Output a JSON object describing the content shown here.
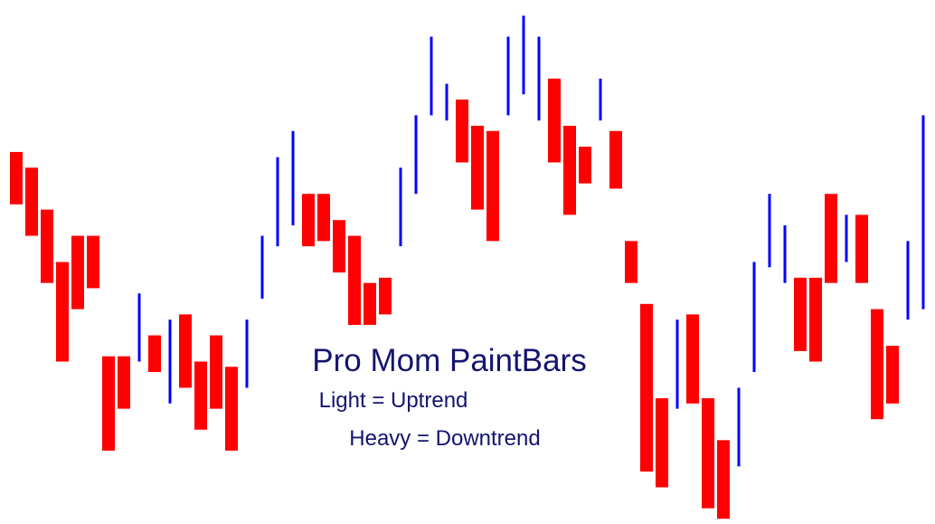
{
  "chart_data": {
    "type": "paintbar",
    "title": "Pro Mom PaintBars",
    "subtitle": [
      "Light = Uptrend",
      "Heavy = Downtrend"
    ],
    "ylim": [
      0,
      100
    ],
    "colors": {
      "up": "#0000ff",
      "down": "#ff0000"
    },
    "high": [
      71,
      68,
      60,
      50,
      55,
      55,
      32,
      32,
      44,
      36,
      39,
      40,
      31,
      36,
      30,
      39,
      55,
      70,
      75,
      63,
      63,
      58,
      55,
      46,
      47,
      68,
      78,
      93,
      84,
      81,
      76,
      75,
      93,
      97,
      93,
      85,
      76,
      72,
      85,
      75,
      54,
      42,
      24,
      39,
      40,
      24,
      16,
      26,
      50,
      63,
      57,
      47,
      47,
      63,
      59,
      59,
      41,
      34,
      54,
      78
    ],
    "low": [
      61,
      55,
      46,
      31,
      41,
      45,
      14,
      22,
      31,
      29,
      23,
      26,
      18,
      22,
      14,
      26,
      43,
      53,
      57,
      53,
      54,
      48,
      38,
      38,
      40,
      53,
      63,
      78,
      77,
      69,
      60,
      54,
      78,
      82,
      77,
      69,
      59,
      65,
      77,
      64,
      46,
      10,
      7,
      22,
      23,
      3,
      1,
      11,
      29,
      49,
      46,
      33,
      31,
      46,
      50,
      46,
      20,
      23,
      39,
      41
    ],
    "trend": [
      "down",
      "down",
      "down",
      "down",
      "down",
      "down",
      "down",
      "down",
      "up",
      "down",
      "up",
      "down",
      "down",
      "down",
      "down",
      "up",
      "up",
      "up",
      "up",
      "down",
      "down",
      "down",
      "down",
      "down",
      "down",
      "up",
      "up",
      "up",
      "up",
      "down",
      "down",
      "down",
      "up",
      "up",
      "up",
      "down",
      "down",
      "down",
      "up",
      "down",
      "down",
      "down",
      "down",
      "up",
      "down",
      "down",
      "down",
      "up",
      "up",
      "up",
      "up",
      "down",
      "down",
      "down",
      "up",
      "down",
      "down",
      "down",
      "up",
      "up"
    ]
  }
}
